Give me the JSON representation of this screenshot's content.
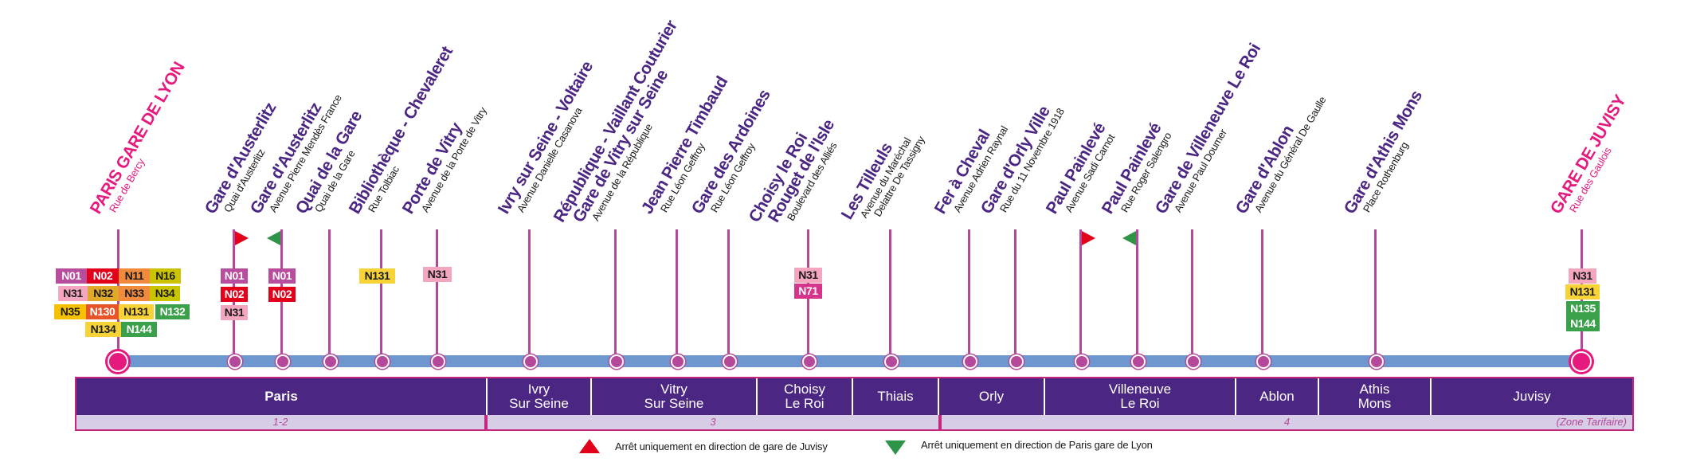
{
  "colors": {
    "line": "#6f97cf",
    "stem": "#b5489a",
    "terminus": "#e6197e",
    "station_name": "#4b2683",
    "zone_header_bg": "#4b2683",
    "zone_row_bg": "#d8cde6",
    "flag_red": "#e2001a",
    "flag_green": "#2e9447"
  },
  "stops": [
    {
      "name": "PARIS GARE DE LYON",
      "street": "Rue de Bercy",
      "terminus": true
    },
    {
      "name": "Gare d'Austerlitz",
      "street": "Quai d'Austerlitz",
      "flag": "red"
    },
    {
      "name": "Gare d'Austerlitz",
      "street": "Avenue Pierre Mendès France",
      "flag": "green"
    },
    {
      "name": "Quai de la Gare",
      "street": "Quai de la Gare"
    },
    {
      "name": "Bibliothèque - Chevaleret",
      "street": "Rue Tolbiac"
    },
    {
      "name": "Porte de Vitry",
      "street": "Avenue de la Porte de Vitry"
    },
    {
      "name": "Ivry sur Seine - Voltaire",
      "street": "Avenue Danielle Casanova"
    },
    {
      "name": "République - Vaillant Couturier",
      "name2": "Gare de Vitry sur Seine",
      "street": "Avenue de la République"
    },
    {
      "name": "Jean Pierre Timbaud",
      "street": "Rue Léon Geffroy"
    },
    {
      "name": "Gare des Ardoines",
      "street": "Rue Léon Geffroy"
    },
    {
      "name": "Choisy le Roi",
      "name2": "Rouget de l'Isle",
      "street": "Boulevard des Alliés"
    },
    {
      "name": "Les Tilleuls",
      "street": "Avenue du Maréchal",
      "street2": "Delattre De Tassigny"
    },
    {
      "name": "Fer à Cheval",
      "street": "Avenue Adrien Raynal"
    },
    {
      "name": "Gare d'Orly Ville",
      "street": "Rue du 11 Novembre 1918"
    },
    {
      "name": "Paul Painlevé",
      "street": "Avenue Sadi Carnot",
      "flag": "red"
    },
    {
      "name": "Paul Painlevé",
      "street": "Rue Roger Salengro",
      "flag": "green"
    },
    {
      "name": "Gare de Villeneuve Le Roi",
      "street": "Avenue Paul Doumer"
    },
    {
      "name": "Gare d'Ablon",
      "street": "Avenue du Général De Gaulle"
    },
    {
      "name": "Gare d'Athis Mons",
      "street": "Place Rothenburg"
    },
    {
      "name": "GARE DE JUVISY",
      "street": "Rue des Gaulois",
      "terminus": true
    }
  ],
  "badges": {
    "paris_gare_de_lyon": [
      {
        "label": "N01",
        "bg": "#b84d9e",
        "fg": "#ffffff"
      },
      {
        "label": "N02",
        "bg": "#e2001a",
        "fg": "#ffffff"
      },
      {
        "label": "N11",
        "bg": "#f08a3c",
        "fg": "#1a1a1a"
      },
      {
        "label": "N16",
        "bg": "#c9c300",
        "fg": "#1a1a1a"
      },
      {
        "label": "N31",
        "bg": "#f4a6bf",
        "fg": "#1a1a1a"
      },
      {
        "label": "N32",
        "bg": "#e0a92a",
        "fg": "#1a1a1a"
      },
      {
        "label": "N33",
        "bg": "#f08a3c",
        "fg": "#1a1a1a"
      },
      {
        "label": "N34",
        "bg": "#c9c300",
        "fg": "#1a1a1a"
      },
      {
        "label": "N35",
        "bg": "#f5c100",
        "fg": "#1a1a1a"
      },
      {
        "label": "N130",
        "bg": "#e8542a",
        "fg": "#ffffff"
      },
      {
        "label": "N131",
        "bg": "#f7d338",
        "fg": "#1a1a1a"
      },
      {
        "label": "N132",
        "bg": "#3aa14a",
        "fg": "#ffffff"
      },
      {
        "label": "N134",
        "bg": "#f7d338",
        "fg": "#1a1a1a"
      },
      {
        "label": "N144",
        "bg": "#3aa14a",
        "fg": "#ffffff"
      }
    ],
    "austerlitz_1": [
      {
        "label": "N01",
        "bg": "#b84d9e",
        "fg": "#ffffff"
      },
      {
        "label": "N02",
        "bg": "#e2001a",
        "fg": "#ffffff"
      },
      {
        "label": "N31",
        "bg": "#f4a6bf",
        "fg": "#1a1a1a"
      }
    ],
    "austerlitz_2": [
      {
        "label": "N01",
        "bg": "#b84d9e",
        "fg": "#ffffff"
      },
      {
        "label": "N02",
        "bg": "#e2001a",
        "fg": "#ffffff"
      }
    ],
    "bibliotheque": [
      {
        "label": "N131",
        "bg": "#f7d338",
        "fg": "#1a1a1a"
      }
    ],
    "porte_de_vitry": [
      {
        "label": "N31",
        "bg": "#f4a6bf",
        "fg": "#1a1a1a"
      }
    ],
    "choisy": [
      {
        "label": "N31",
        "bg": "#f4a6bf",
        "fg": "#1a1a1a"
      },
      {
        "label": "N71",
        "bg": "#d6338a",
        "fg": "#ffffff"
      }
    ],
    "juvisy": [
      {
        "label": "N31",
        "bg": "#f4a6bf",
        "fg": "#1a1a1a"
      },
      {
        "label": "N131",
        "bg": "#f7d338",
        "fg": "#1a1a1a"
      },
      {
        "label": "N135",
        "bg": "#3aa14a",
        "fg": "#ffffff"
      },
      {
        "label": "N144",
        "bg": "#3aa14a",
        "fg": "#ffffff"
      }
    ]
  },
  "towns": [
    "Paris",
    "Ivry\nSur Seine",
    "Vitry\nSur Seine",
    "Choisy\nLe Roi",
    "Thiais",
    "Orly",
    "Villeneuve\nLe Roi",
    "Ablon",
    "Athis\nMons",
    "Juvisy"
  ],
  "zones": [
    "1-2",
    "3",
    "4"
  ],
  "zone_caption": "(Zone Tarifaire)",
  "legend": {
    "red": "Arrêt uniquement en direction de gare de Juvisy",
    "green": "Arrêt uniquement en direction de Paris gare de Lyon"
  }
}
